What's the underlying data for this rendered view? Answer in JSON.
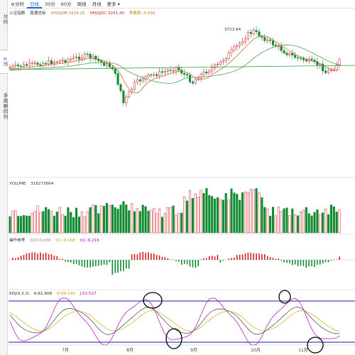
{
  "sidebar": {
    "tabs": [
      {
        "label": "分时",
        "active": false
      },
      {
        "label": "K线",
        "active": true
      },
      {
        "label": "多周期同列",
        "active": false
      }
    ]
  },
  "toolbar": {
    "items": [
      {
        "label": "分时",
        "active": false
      },
      {
        "label": "日线",
        "active": true
      },
      {
        "label": "30分",
        "active": false
      },
      {
        "label": "60分",
        "active": false
      },
      {
        "label": "周线",
        "active": false
      },
      {
        "label": "月线",
        "active": false
      },
      {
        "label": "更多 ▾",
        "active": false
      }
    ]
  },
  "main_chart": {
    "name": "上证指数",
    "type": "普通坐标",
    "indicator1": "HHJSJDB:3224.25",
    "indicator2": "HHJSJDC:3241.40",
    "indicator3": "乖离率:-0.630",
    "peak_label": "3723.84",
    "colors": {
      "up": "#d02020",
      "down": "#108a30",
      "ma1": "#c07040",
      "ma2": "#50a050"
    }
  },
  "volume_chart": {
    "label": "VOLUME",
    "value": "316273664"
  },
  "macd_chart": {
    "label": "操作参考",
    "zzx": "ZZX:0.000",
    "x1": "X1:-0.108",
    "x2": "X2:-0.216"
  },
  "kdj_chart": {
    "label": "KDJ(9,3,3)",
    "k": "K:61.608",
    "d": "D:66.149",
    "j": "J:52.527",
    "colors": {
      "k": "#222222",
      "d": "#c8a000",
      "j": "#b000c0",
      "line": "#1a1aa0"
    }
  },
  "x_axis": {
    "months": [
      "7月",
      "8月",
      "9月",
      "10月",
      "11月"
    ]
  }
}
